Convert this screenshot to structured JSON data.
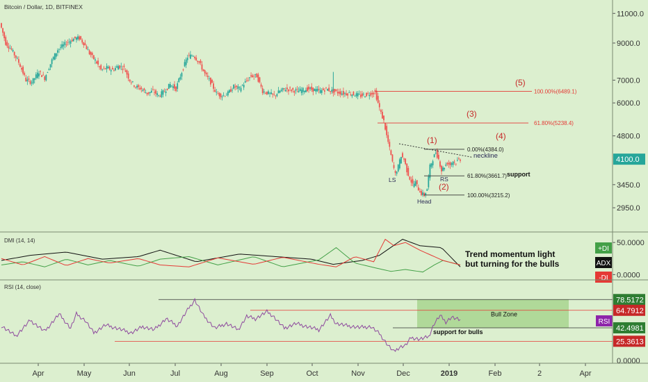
{
  "header": {
    "title": "Bitcoin / Dollar, 1D, BITFINEX"
  },
  "colors": {
    "background": "#dcefcf",
    "up": "#26a69a",
    "down": "#ef5350",
    "fib": "#e53935",
    "wave_label": "#c62828",
    "plus_di": "#43a047",
    "minus_di": "#e53935",
    "adx": "#111111",
    "rsi": "#8e4a9e",
    "bull_zone": "#a8d58f"
  },
  "chart_data": [
    {
      "type": "candlestick",
      "symbol": "Bitcoin / Dollar, 1D, BITFINEX",
      "scale": "log",
      "ylim": [
        2600,
        11600
      ],
      "y_ticks": [
        "11000.0",
        "9000.0",
        "7000.0",
        "6000.0",
        "4800.0",
        "4100.0",
        "3450.0",
        "2950.0"
      ],
      "x_ticks": [
        "Apr",
        "May",
        "Jun",
        "Jul",
        "Aug",
        "Sep",
        "Oct",
        "Nov",
        "Dec",
        "2019",
        "Feb",
        "2",
        "Apr"
      ],
      "last_price_label": "4100.0",
      "price_path": [
        [
          0,
          10300
        ],
        [
          4,
          9000
        ],
        [
          8,
          8600
        ],
        [
          13,
          7900
        ],
        [
          18,
          7000
        ],
        [
          22,
          6900
        ],
        [
          27,
          7400
        ],
        [
          31,
          7100
        ],
        [
          36,
          8000
        ],
        [
          40,
          8600
        ],
        [
          46,
          9000
        ],
        [
          52,
          9300
        ],
        [
          55,
          9300
        ],
        [
          58,
          9000
        ],
        [
          62,
          8400
        ],
        [
          66,
          8000
        ],
        [
          70,
          7500
        ],
        [
          74,
          7600
        ],
        [
          78,
          7500
        ],
        [
          82,
          7700
        ],
        [
          86,
          7600
        ],
        [
          90,
          7000
        ],
        [
          94,
          6700
        ],
        [
          98,
          6600
        ],
        [
          102,
          6400
        ],
        [
          106,
          6500
        ],
        [
          110,
          6300
        ],
        [
          114,
          6500
        ],
        [
          118,
          6800
        ],
        [
          122,
          6600
        ],
        [
          126,
          7400
        ],
        [
          130,
          8200
        ],
        [
          134,
          8300
        ],
        [
          138,
          7900
        ],
        [
          142,
          7300
        ],
        [
          146,
          6900
        ],
        [
          150,
          6400
        ],
        [
          154,
          6300
        ],
        [
          158,
          6400
        ],
        [
          162,
          6700
        ],
        [
          166,
          6600
        ],
        [
          170,
          6900
        ],
        [
          174,
          7200
        ],
        [
          178,
          7200
        ],
        [
          182,
          6500
        ],
        [
          186,
          6400
        ],
        [
          190,
          6300
        ],
        [
          194,
          6500
        ],
        [
          198,
          6600
        ],
        [
          202,
          6550
        ],
        [
          206,
          6500
        ],
        [
          210,
          6550
        ],
        [
          214,
          6600
        ],
        [
          218,
          6550
        ],
        [
          222,
          6500
        ],
        [
          226,
          6600
        ],
        [
          230,
          6500
        ],
        [
          234,
          6450
        ],
        [
          238,
          6400
        ],
        [
          242,
          6400
        ],
        [
          246,
          6350
        ],
        [
          250,
          6300
        ],
        [
          254,
          6350
        ],
        [
          258,
          6420
        ],
        [
          260,
          6450
        ],
        [
          262,
          6000
        ],
        [
          264,
          5600
        ],
        [
          266,
          5300
        ],
        [
          268,
          4800
        ],
        [
          270,
          4400
        ],
        [
          272,
          4000
        ],
        [
          274,
          3700
        ],
        [
          276,
          3900
        ],
        [
          278,
          4200
        ],
        [
          280,
          4100
        ],
        [
          282,
          3800
        ],
        [
          284,
          3600
        ],
        [
          286,
          3450
        ],
        [
          288,
          3500
        ],
        [
          290,
          3350
        ],
        [
          292,
          3250
        ],
        [
          294,
          3215
        ],
        [
          296,
          3350
        ],
        [
          298,
          3900
        ],
        [
          300,
          4100
        ],
        [
          302,
          4300
        ],
        [
          304,
          4100
        ],
        [
          306,
          3800
        ],
        [
          308,
          3900
        ],
        [
          310,
          4000
        ],
        [
          312,
          3950
        ],
        [
          314,
          4050
        ],
        [
          316,
          4000
        ],
        [
          318,
          4100
        ]
      ],
      "spikes": [
        [
          230,
          6500,
          7400
        ]
      ],
      "fib_levels": [
        {
          "label": "100.00%(6489.1)",
          "value": 6489.1
        },
        {
          "label": "61.80%(5238.4)",
          "value": 5238.4
        },
        {
          "label": "0.00%(4384.0)",
          "value": 4384.0
        },
        {
          "label": "61.80%(3661.7)",
          "value": 3661.7
        },
        {
          "label": "100.00%(3215.2)",
          "value": 3215.2
        }
      ],
      "wave_labels": [
        "(5)",
        "(3)",
        "(4)",
        "(1)",
        "(2)"
      ],
      "annotations": [
        "neckline",
        "support",
        "LS",
        "Head",
        "RS"
      ]
    },
    {
      "type": "line",
      "indicator": "DMI (14, 14)",
      "ylim": [
        -5,
        62
      ],
      "y_ticks": [
        "50.0000",
        "0.0000"
      ],
      "tags": [
        "+DI",
        "ADX",
        "-DI"
      ],
      "annotation": "Trend momentum light but turning for the bulls",
      "series": [
        {
          "name": "ADX",
          "values": [
            [
              0,
              22
            ],
            [
              20,
              30
            ],
            [
              45,
              35
            ],
            [
              70,
              24
            ],
            [
              95,
              28
            ],
            [
              110,
              38
            ],
            [
              135,
              20
            ],
            [
              165,
              32
            ],
            [
              190,
              28
            ],
            [
              215,
              24
            ],
            [
              230,
              16
            ],
            [
              250,
              22
            ],
            [
              262,
              30
            ],
            [
              278,
              55
            ],
            [
              290,
              45
            ],
            [
              305,
              42
            ],
            [
              318,
              12
            ]
          ]
        },
        {
          "name": "+DI",
          "values": [
            [
              0,
              15
            ],
            [
              15,
              20
            ],
            [
              30,
              12
            ],
            [
              45,
              24
            ],
            [
              60,
              15
            ],
            [
              75,
              22
            ],
            [
              95,
              13
            ],
            [
              110,
              24
            ],
            [
              130,
              28
            ],
            [
              150,
              15
            ],
            [
              175,
              28
            ],
            [
              195,
              12
            ],
            [
              220,
              23
            ],
            [
              232,
              42
            ],
            [
              245,
              18
            ],
            [
              260,
              10
            ],
            [
              270,
              5
            ],
            [
              280,
              8
            ],
            [
              292,
              4
            ],
            [
              300,
              15
            ],
            [
              306,
              22
            ],
            [
              318,
              15
            ]
          ]
        },
        {
          "name": "-DI",
          "values": [
            [
              0,
              25
            ],
            [
              15,
              15
            ],
            [
              30,
              28
            ],
            [
              45,
              14
            ],
            [
              60,
              25
            ],
            [
              75,
              18
            ],
            [
              95,
              25
            ],
            [
              110,
              15
            ],
            [
              130,
              12
            ],
            [
              150,
              26
            ],
            [
              175,
              16
            ],
            [
              195,
              27
            ],
            [
              220,
              16
            ],
            [
              232,
              12
            ],
            [
              245,
              28
            ],
            [
              258,
              20
            ],
            [
              266,
              55
            ],
            [
              272,
              45
            ],
            [
              280,
              50
            ],
            [
              290,
              38
            ],
            [
              300,
              28
            ],
            [
              306,
              22
            ],
            [
              318,
              15
            ]
          ]
        }
      ]
    },
    {
      "type": "line",
      "indicator": "RSI (14, close)",
      "ylim": [
        0,
        100
      ],
      "y_ticks": [
        "78.5172",
        "64.7912",
        "42.4981",
        "25.3613",
        "0.0000"
      ],
      "tag": "RSI",
      "zone_label": "Bull Zone",
      "support_label": "support for bulls",
      "levels": [
        78.5172,
        64.7912,
        42.4981,
        25.3613
      ],
      "series": [
        {
          "name": "RSI",
          "values": [
            [
              0,
              45
            ],
            [
              10,
              32
            ],
            [
              20,
              52
            ],
            [
              30,
              38
            ],
            [
              40,
              60
            ],
            [
              48,
              42
            ],
            [
              52,
              60
            ],
            [
              58,
              52
            ],
            [
              64,
              36
            ],
            [
              72,
              46
            ],
            [
              80,
              42
            ],
            [
              90,
              36
            ],
            [
              98,
              44
            ],
            [
              106,
              40
            ],
            [
              114,
              54
            ],
            [
              122,
              45
            ],
            [
              130,
              68
            ],
            [
              134,
              78
            ],
            [
              140,
              58
            ],
            [
              148,
              42
            ],
            [
              156,
              48
            ],
            [
              164,
              40
            ],
            [
              170,
              57
            ],
            [
              176,
              54
            ],
            [
              184,
              63
            ],
            [
              188,
              58
            ],
            [
              196,
              42
            ],
            [
              204,
              48
            ],
            [
              212,
              44
            ],
            [
              220,
              40
            ],
            [
              228,
              58
            ],
            [
              232,
              48
            ],
            [
              240,
              45
            ],
            [
              248,
              43
            ],
            [
              256,
              44
            ],
            [
              262,
              35
            ],
            [
              268,
              20
            ],
            [
              272,
              12
            ],
            [
              276,
              18
            ],
            [
              280,
              20
            ],
            [
              284,
              30
            ],
            [
              290,
              28
            ],
            [
              296,
              31
            ],
            [
              300,
              48
            ],
            [
              304,
              58
            ],
            [
              308,
              50
            ],
            [
              312,
              56
            ],
            [
              318,
              52
            ]
          ]
        }
      ]
    }
  ]
}
